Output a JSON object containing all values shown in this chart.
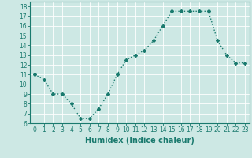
{
  "x": [
    0,
    1,
    2,
    3,
    4,
    5,
    6,
    7,
    8,
    9,
    10,
    11,
    12,
    13,
    14,
    15,
    16,
    17,
    18,
    19,
    20,
    21,
    22,
    23
  ],
  "y": [
    11,
    10.5,
    9,
    9,
    8,
    6.5,
    6.5,
    7.5,
    9,
    11,
    12.5,
    13,
    13.5,
    14.5,
    16,
    17.5,
    17.5,
    17.5,
    17.5,
    17.5,
    14.5,
    13,
    12.2,
    12.2
  ],
  "xlabel": "Humidex (Indice chaleur)",
  "ylabel": "",
  "xlim": [
    -0.5,
    23.5
  ],
  "ylim": [
    6,
    18.5
  ],
  "yticks": [
    6,
    7,
    8,
    9,
    10,
    11,
    12,
    13,
    14,
    15,
    16,
    17,
    18
  ],
  "xticks": [
    0,
    1,
    2,
    3,
    4,
    5,
    6,
    7,
    8,
    9,
    10,
    11,
    12,
    13,
    14,
    15,
    16,
    17,
    18,
    19,
    20,
    21,
    22,
    23
  ],
  "line_color": "#1a7a6e",
  "marker": "D",
  "markersize": 2.0,
  "linewidth": 1.0,
  "bg_color": "#cde8e4",
  "grid_color": "#ffffff",
  "title_fontsize": 7,
  "label_fontsize": 7,
  "tick_fontsize": 5.5
}
